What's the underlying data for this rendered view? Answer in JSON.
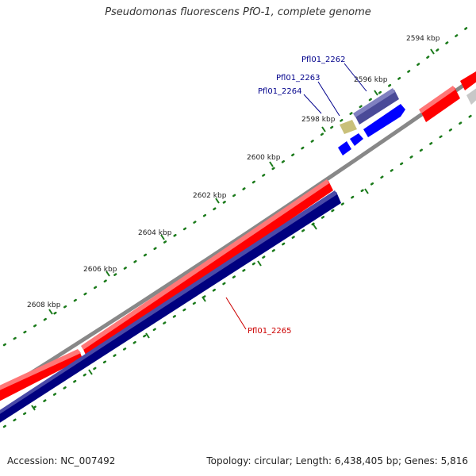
{
  "title": "Pseudomonas fluorescens PfO-1, complete genome",
  "footer": {
    "accession": "Accession: NC_007492",
    "summary": "Topology: circular; Length: 6,438,405 bp; Genes: 5,816"
  },
  "ruler": {
    "labels": [
      "2594 kbp",
      "2596 kbp",
      "2598 kbp",
      "2600 kbp",
      "2602 kbp",
      "2604 kbp",
      "2606 kbp",
      "2608 kbp"
    ]
  },
  "genes": {
    "g2262": "Pfl01_2262",
    "g2263": "Pfl01_2263",
    "g2264": "Pfl01_2264",
    "g2265": "Pfl01_2265"
  },
  "colors": {
    "backbone": "#888888",
    "red_feature": "#ff0000",
    "navy_feature": "#000080",
    "blue_feature": "#0000ff",
    "slate_feature": "#4a4a98",
    "khaki_feature": "#c9c07a",
    "gray_feature": "#c8c8c8",
    "tick": "#1a7a1a",
    "label_blue": "#00008b",
    "label_red": "#cc0000"
  }
}
